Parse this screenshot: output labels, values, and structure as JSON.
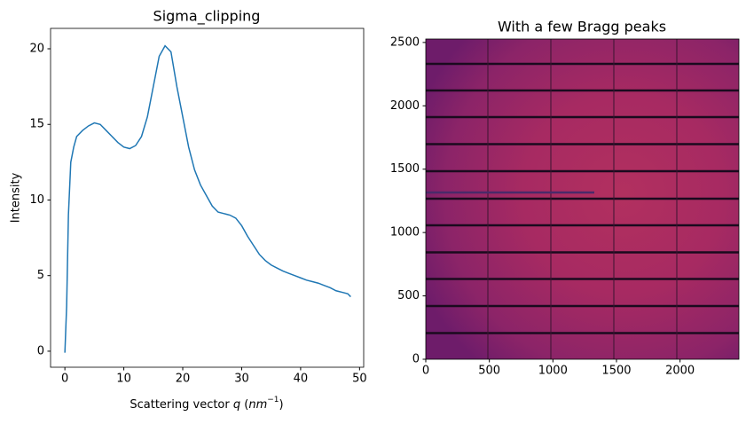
{
  "chart_data": [
    {
      "type": "line",
      "title": "Sigma_clipping",
      "ylabel": "Intensity",
      "xlabel_parts": [
        "Scattering vector ",
        "q",
        " (",
        "nm",
        "−1",
        ")"
      ],
      "xlim": [
        -2.43,
        50.7
      ],
      "ylim": [
        -1.06,
        21.35
      ],
      "xticks": [
        0,
        10,
        20,
        30,
        40,
        50
      ],
      "yticks": [
        0,
        5,
        10,
        15,
        20
      ],
      "x": [
        0,
        0.3,
        0.6,
        1,
        1.5,
        2,
        3,
        4,
        5,
        6,
        7,
        8,
        9,
        10,
        11,
        12,
        13,
        14,
        15,
        16,
        17,
        18,
        19,
        20,
        21,
        22,
        23,
        24,
        25,
        26,
        27,
        28,
        29,
        30,
        31,
        32,
        33,
        34,
        35,
        36,
        37,
        38,
        39,
        40,
        41,
        42,
        43,
        44,
        45,
        46,
        47,
        48,
        48.5
      ],
      "series": [
        {
          "color": "#1f77b4",
          "values": [
            -0.1,
            3,
            9,
            12.5,
            13.5,
            14.2,
            14.6,
            14.9,
            15.1,
            15.0,
            14.6,
            14.2,
            13.8,
            13.5,
            13.4,
            13.6,
            14.2,
            15.5,
            17.5,
            19.5,
            20.2,
            19.8,
            17.5,
            15.5,
            13.5,
            12,
            11,
            10.3,
            9.6,
            9.2,
            9.1,
            9.0,
            8.8,
            8.3,
            7.6,
            7.0,
            6.4,
            6.0,
            5.7,
            5.5,
            5.3,
            5.15,
            5.0,
            4.85,
            4.7,
            4.6,
            4.5,
            4.35,
            4.2,
            4.0,
            3.9,
            3.8,
            3.6
          ]
        }
      ]
    },
    {
      "type": "image",
      "title": "With a few Bragg peaks",
      "xlim": [
        0,
        2463
      ],
      "ylim": [
        0,
        2527
      ],
      "xticks": [
        0,
        500,
        1000,
        1500,
        2000
      ],
      "yticks": [
        0,
        500,
        1000,
        1500,
        2000,
        2500
      ]
    }
  ]
}
